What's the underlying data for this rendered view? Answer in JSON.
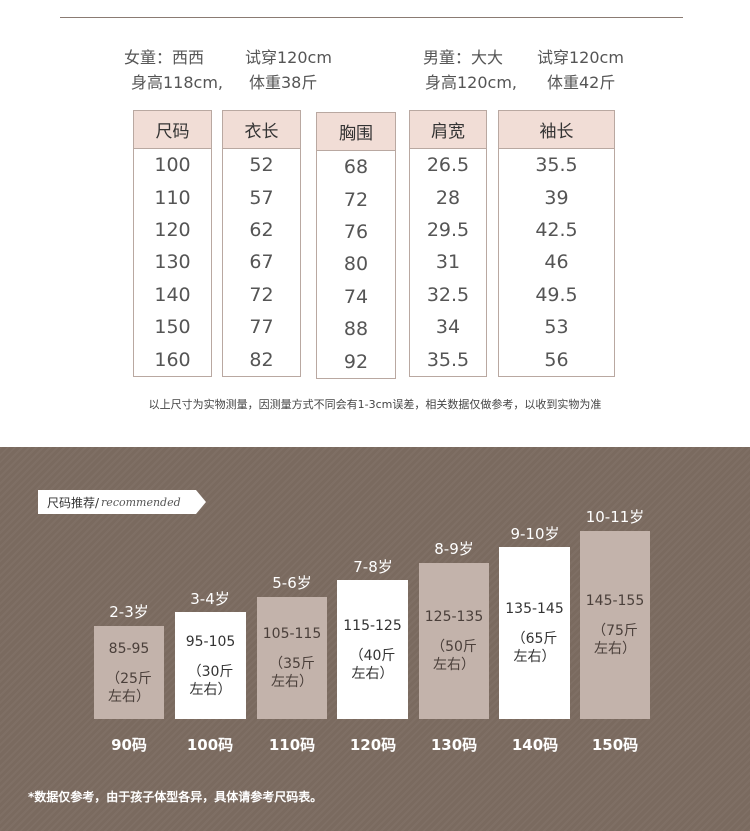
{
  "models": [
    {
      "name": "女童：西西",
      "try": "试穿120cm",
      "height": "身高118cm,",
      "weight": "体重38斤"
    },
    {
      "name": "男童：大大",
      "try": "试穿120cm",
      "height": "身高120cm,",
      "weight": "体重42斤"
    }
  ],
  "table": {
    "columns": [
      {
        "header": "尺码",
        "values": [
          "100",
          "110",
          "120",
          "130",
          "140",
          "150",
          "160"
        ]
      },
      {
        "header": "衣长",
        "values": [
          "52",
          "57",
          "62",
          "67",
          "72",
          "77",
          "82"
        ]
      },
      {
        "header": "胸围",
        "values": [
          "68",
          "72",
          "76",
          "80",
          "74",
          "88",
          "92"
        ]
      },
      {
        "header": "肩宽",
        "values": [
          "26.5",
          "28",
          "29.5",
          "31",
          "32.5",
          "34",
          "35.5"
        ]
      },
      {
        "header": "袖长",
        "values": [
          "35.5",
          "39",
          "42.5",
          "46",
          "49.5",
          "53",
          "56"
        ]
      }
    ],
    "note": "以上尺寸为实物测量，因测量方式不同会有1-3cm误差，相关数据仅做参考，以收到实物为准"
  },
  "recommend": {
    "tag_cn": "尺码推荐/",
    "tag_en": "recommended",
    "bars": [
      {
        "age": "2-3岁",
        "range": "85-95",
        "weight": "（25斤",
        "weight2": "左右）",
        "size": "90码",
        "style": "light"
      },
      {
        "age": "3-4岁",
        "range": "95-105",
        "weight": "（30斤",
        "weight2": "左右）",
        "size": "100码",
        "style": "white"
      },
      {
        "age": "5-6岁",
        "range": "105-115",
        "weight": "（35斤",
        "weight2": "左右）",
        "size": "110码",
        "style": "light"
      },
      {
        "age": "7-8岁",
        "range": "115-125",
        "weight": "（40斤",
        "weight2": "左右）",
        "size": "120码",
        "style": "white"
      },
      {
        "age": "8-9岁",
        "range": "125-135",
        "weight": "（50斤",
        "weight2": "左右）",
        "size": "130码",
        "style": "light"
      },
      {
        "age": "9-10岁",
        "range": "135-145",
        "weight": "（65斤",
        "weight2": "左右）",
        "size": "140码",
        "style": "white"
      },
      {
        "age": "10-11岁",
        "range": "145-155",
        "weight": "（75斤",
        "weight2": "左右）",
        "size": "150码",
        "style": "light"
      }
    ],
    "footnote": "*数据仅参考，由于孩子体型各异，具体请参考尺码表。"
  }
}
